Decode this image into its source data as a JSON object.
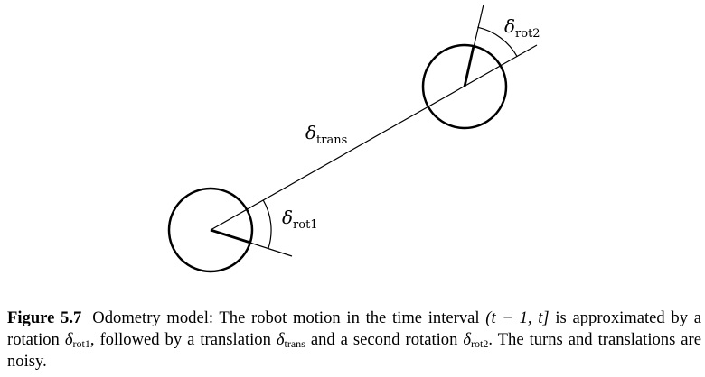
{
  "diagram": {
    "labels": {
      "trans": {
        "symbol": "δ",
        "subscript": "trans"
      },
      "rot1": {
        "symbol": "δ",
        "subscript": "rot1"
      },
      "rot2": {
        "symbol": "δ",
        "subscript": "rot2"
      }
    }
  },
  "caption": {
    "figure_label": "Figure 5.7",
    "text_1": "Odometry model: The robot motion in the time interval ",
    "interval": "(t − 1, t]",
    "text_2": " is approximated by a rotation ",
    "delta_symbol": "δ",
    "rot1_sub": "rot1",
    "text_3": ", followed by a translation ",
    "trans_sub": "trans",
    "text_4": " and a second rotation ",
    "rot2_sub": "rot2",
    "text_5": ". The turns and translations are noisy."
  }
}
